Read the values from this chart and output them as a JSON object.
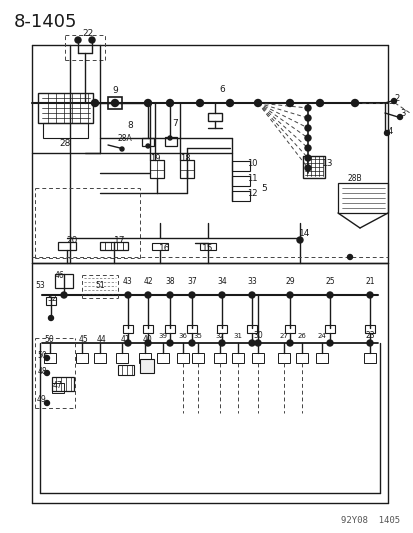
{
  "page_id": "8-1405",
  "watermark": "92Y08  1405",
  "bg_color": "#ffffff",
  "diagram_color": "#1a1a1a",
  "title_fontsize": 13,
  "label_fontsize": 6.0,
  "watermark_fontsize": 6.5
}
